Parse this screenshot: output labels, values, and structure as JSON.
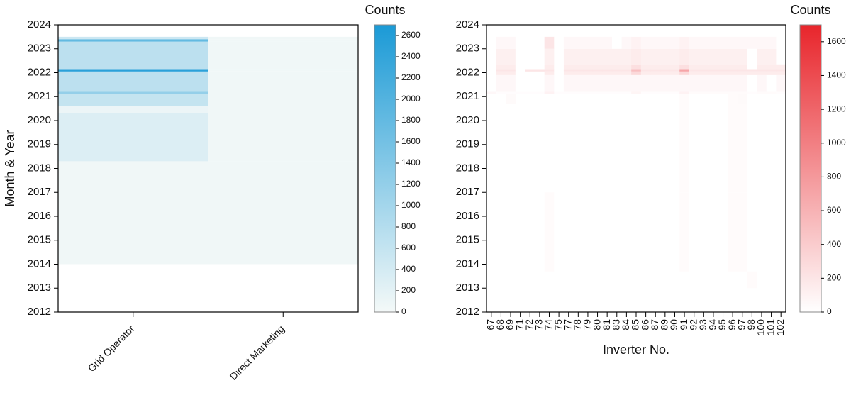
{
  "chart_data": [
    {
      "type": "heatmap",
      "ylabel": "Month & Year",
      "categories": [
        "Grid Operator",
        "Direct Marketing"
      ],
      "ylim": [
        2012,
        2024
      ],
      "yticks": [
        2012,
        2013,
        2014,
        2015,
        2016,
        2017,
        2018,
        2019,
        2020,
        2021,
        2022,
        2023,
        2024
      ],
      "y_edges": [
        2014,
        2018.3,
        2020.3,
        2020.6,
        2021.1,
        2021.2,
        2022.05,
        2022.15,
        2023.3,
        2023.4,
        2023.5
      ],
      "values": [
        [
          50,
          50
        ],
        [
          300,
          50
        ],
        [
          100,
          50
        ],
        [
          600,
          50
        ],
        [
          1200,
          50
        ],
        [
          700,
          50
        ],
        [
          2500,
          50
        ],
        [
          700,
          50
        ],
        [
          1800,
          50
        ],
        [
          500,
          50
        ]
      ],
      "colorbar_title": "Counts",
      "zlim": [
        0,
        2700
      ],
      "zticks": [
        0,
        200,
        400,
        600,
        800,
        1000,
        1200,
        1400,
        1600,
        1800,
        2000,
        2200,
        2400,
        2600
      ],
      "colors": [
        "#f4f9f8",
        "#1b9ad6"
      ]
    },
    {
      "type": "heatmap",
      "xlabel": "Inverter No.",
      "categories": [
        "67",
        "68",
        "69",
        "71",
        "72",
        "73",
        "74",
        "75",
        "77",
        "78",
        "79",
        "80",
        "81",
        "83",
        "84",
        "85",
        "86",
        "87",
        "89",
        "90",
        "91",
        "92",
        "93",
        "94",
        "95",
        "96",
        "97",
        "98",
        "100",
        "101",
        "102"
      ],
      "ylim": [
        2012,
        2024
      ],
      "yticks": [
        2012,
        2013,
        2014,
        2015,
        2016,
        2017,
        2018,
        2019,
        2020,
        2021,
        2022,
        2023,
        2024
      ],
      "y_edges": [
        2013,
        2013.7,
        2017,
        2020.7,
        2021.1,
        2021.2,
        2021.9,
        2022.05,
        2022.15,
        2022.35,
        2023,
        2023.5
      ],
      "values": [
        [
          0,
          0,
          0,
          0,
          0,
          0,
          0,
          0,
          0,
          0,
          0,
          0,
          0,
          0,
          0,
          0,
          0,
          0,
          0,
          0,
          0,
          0,
          0,
          0,
          0,
          0,
          0,
          30,
          0,
          0,
          0
        ],
        [
          0,
          0,
          0,
          0,
          0,
          0,
          30,
          0,
          0,
          0,
          0,
          0,
          0,
          0,
          0,
          0,
          0,
          0,
          0,
          0,
          30,
          0,
          0,
          0,
          0,
          30,
          30,
          0,
          0,
          0,
          0
        ],
        [
          0,
          0,
          0,
          0,
          0,
          0,
          0,
          0,
          0,
          0,
          0,
          0,
          0,
          0,
          0,
          0,
          0,
          0,
          0,
          0,
          30,
          0,
          0,
          0,
          0,
          30,
          30,
          0,
          0,
          0,
          0
        ],
        [
          0,
          0,
          40,
          0,
          0,
          0,
          0,
          0,
          0,
          0,
          0,
          0,
          0,
          0,
          0,
          0,
          0,
          0,
          0,
          0,
          30,
          0,
          0,
          0,
          0,
          30,
          40,
          0,
          0,
          0,
          0
        ],
        [
          60,
          20,
          20,
          20,
          20,
          20,
          100,
          20,
          20,
          20,
          20,
          20,
          20,
          20,
          20,
          80,
          20,
          20,
          20,
          20,
          100,
          30,
          30,
          30,
          30,
          30,
          30,
          20,
          30,
          30,
          20
        ],
        [
          0,
          60,
          60,
          0,
          0,
          0,
          60,
          0,
          60,
          60,
          60,
          60,
          60,
          60,
          60,
          60,
          60,
          60,
          60,
          60,
          60,
          60,
          60,
          60,
          60,
          60,
          60,
          0,
          60,
          0,
          60
        ],
        [
          0,
          150,
          150,
          0,
          0,
          0,
          150,
          0,
          150,
          150,
          150,
          150,
          150,
          150,
          150,
          300,
          150,
          150,
          150,
          150,
          300,
          150,
          150,
          150,
          150,
          150,
          150,
          150,
          150,
          150,
          150
        ],
        [
          0,
          200,
          200,
          0,
          200,
          200,
          200,
          0,
          200,
          200,
          200,
          200,
          200,
          200,
          200,
          500,
          200,
          200,
          200,
          200,
          700,
          200,
          200,
          200,
          200,
          200,
          200,
          200,
          200,
          200,
          200
        ],
        [
          0,
          150,
          150,
          0,
          0,
          0,
          150,
          0,
          150,
          150,
          150,
          150,
          150,
          150,
          150,
          250,
          150,
          150,
          150,
          150,
          250,
          150,
          150,
          150,
          150,
          150,
          150,
          0,
          150,
          150,
          150
        ],
        [
          0,
          120,
          120,
          0,
          0,
          0,
          120,
          0,
          120,
          120,
          120,
          120,
          120,
          120,
          120,
          150,
          120,
          120,
          120,
          120,
          150,
          120,
          120,
          120,
          120,
          120,
          120,
          0,
          120,
          120,
          0
        ],
        [
          0,
          60,
          60,
          0,
          0,
          0,
          200,
          0,
          60,
          60,
          60,
          60,
          60,
          0,
          60,
          100,
          60,
          60,
          60,
          60,
          100,
          60,
          60,
          60,
          60,
          60,
          60,
          60,
          60,
          60,
          0
        ]
      ],
      "colorbar_title": "Counts",
      "zlim": [
        0,
        1700
      ],
      "zticks": [
        0,
        200,
        400,
        600,
        800,
        1000,
        1200,
        1400,
        1600
      ],
      "colors": [
        "#ffffff",
        "#e8252b"
      ]
    }
  ]
}
